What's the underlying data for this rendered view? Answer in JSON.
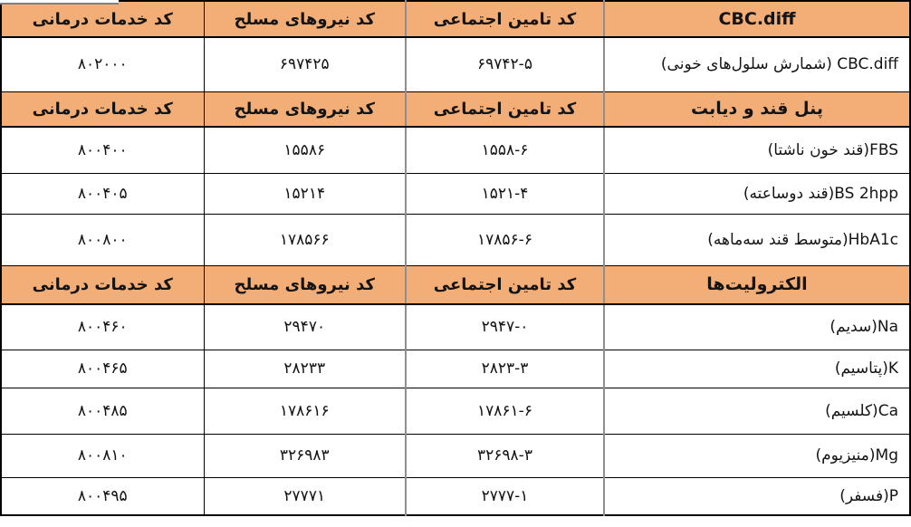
{
  "table": {
    "colors": {
      "header_bg": "#F2AE76",
      "grid_black": "#000000",
      "grid_grey": "#8F8F8F"
    },
    "headers": {
      "service": "کد خدمات درمانی",
      "armed": "کد نیروهای مسلح",
      "social": "کد تامین اجتماعی"
    },
    "sections": [
      {
        "title": "CBC.diff",
        "rows": [
          {
            "name": "CBC.diff (شمارش سلول‌های خونی)",
            "social": "۶۹۷۴۲-۵",
            "armed": "۶۹۷۴۲۵",
            "service": "۸۰۲۰۰۰"
          }
        ]
      },
      {
        "title": "پنل قند و دیابت",
        "rows": [
          {
            "name": "FBS(قند خون ناشتا)",
            "social": "۱۵۵۸-۶",
            "armed": "۱۵۵۸۶",
            "service": "۸۰۰۴۰۰"
          },
          {
            "name": "BS 2hpp(قند دوساعته)",
            "social": "۱۵۲۱-۴",
            "armed": "۱۵۲۱۴",
            "service": "۸۰۰۴۰۵"
          },
          {
            "name": "HbA1c(متوسط قند سه‌ماهه)",
            "social": "۱۷۸۵۶-۶",
            "armed": "۱۷۸۵۶۶",
            "service": "۸۰۰۸۰۰"
          }
        ]
      },
      {
        "title": "الکترولیت‌ها",
        "rows": [
          {
            "name": "Na(سدیم)",
            "social": "۲۹۴۷-۰",
            "armed": "۲۹۴۷۰",
            "service": "۸۰۰۴۶۰"
          },
          {
            "name": "K(پتاسیم)",
            "social": "۲۸۲۳-۳",
            "armed": "۲۸۲۳۳",
            "service": "۸۰۰۴۶۵"
          },
          {
            "name": "Ca(کلسیم)",
            "social": "۱۷۸۶۱-۶",
            "armed": "۱۷۸۶۱۶",
            "service": "۸۰۰۴۸۵"
          },
          {
            "name": "Mg(منیزیوم)",
            "social": "۳۲۶۹۸-۳",
            "armed": "۳۲۶۹۸۳",
            "service": "۸۰۰۸۱۰"
          },
          {
            "name": "P(فسفر)",
            "social": "۲۷۷۷-۱",
            "armed": "۲۷۷۷۱",
            "service": "۸۰۰۴۹۵"
          }
        ]
      }
    ]
  }
}
